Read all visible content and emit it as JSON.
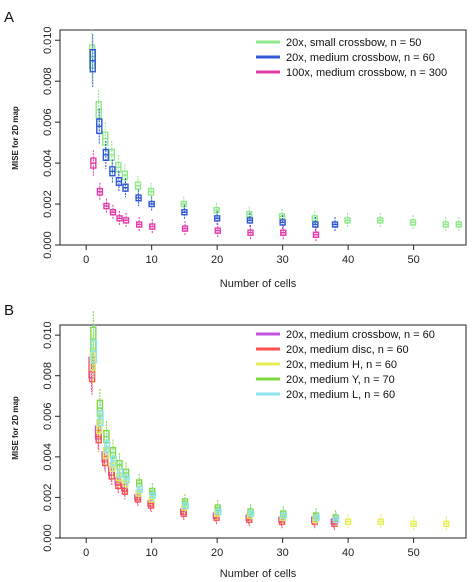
{
  "chart_data": [
    {
      "panel": "A",
      "type": "scatter",
      "title": "",
      "xlabel": "Number of cells",
      "ylabel": "MISE for 2D map",
      "xlim": [
        -4,
        58
      ],
      "ylim": [
        0,
        0.0105
      ],
      "xticks": [
        "0",
        "10",
        "20",
        "30",
        "40",
        "50"
      ],
      "yticks": [
        "0.000",
        "0.002",
        "0.004",
        "0.006",
        "0.008",
        "0.010"
      ],
      "legend_position": "top-right",
      "series": [
        {
          "name": "20x, small crossbow, n = 50",
          "color": "#8fe88a",
          "x": [
            1,
            2,
            3,
            4,
            5,
            6,
            8,
            10,
            15,
            20,
            25,
            30,
            35,
            40,
            45,
            50,
            55,
            57
          ],
          "y": [
            0.0092,
            0.0066,
            0.0052,
            0.0044,
            0.0038,
            0.0034,
            0.0029,
            0.0026,
            0.002,
            0.0017,
            0.0015,
            0.0014,
            0.0013,
            0.0012,
            0.0012,
            0.0011,
            0.001,
            0.001
          ]
        },
        {
          "name": "20x, medium crossbow, n = 60",
          "color": "#2f57d6",
          "x": [
            1,
            2,
            3,
            4,
            5,
            6,
            8,
            10,
            15,
            20,
            25,
            30,
            35,
            38
          ],
          "y": [
            0.009,
            0.0058,
            0.0044,
            0.0036,
            0.0031,
            0.0028,
            0.0023,
            0.002,
            0.0016,
            0.0013,
            0.0012,
            0.0011,
            0.001,
            0.001
          ]
        },
        {
          "name": "100x, medium crossbow, n = 300",
          "color": "#e33caa",
          "x": [
            1,
            2,
            3,
            4,
            5,
            6,
            8,
            10,
            15,
            20,
            25,
            30,
            35
          ],
          "y": [
            0.004,
            0.0026,
            0.0019,
            0.0016,
            0.0013,
            0.0012,
            0.001,
            0.0009,
            0.0008,
            0.0007,
            0.0006,
            0.0006,
            0.0005
          ]
        }
      ]
    },
    {
      "panel": "B",
      "type": "scatter",
      "title": "",
      "xlabel": "Number of cells",
      "ylabel": "MISE for 2D map",
      "xlim": [
        -4,
        58
      ],
      "ylim": [
        0,
        0.0105
      ],
      "xticks": [
        "0",
        "10",
        "20",
        "30",
        "40",
        "50"
      ],
      "yticks": [
        "0.000",
        "0.002",
        "0.004",
        "0.006",
        "0.008",
        "0.010"
      ],
      "legend_position": "top-right",
      "series": [
        {
          "name": "20x, medium crossbow, n = 60",
          "color": "#c252e0",
          "x": [
            1,
            2,
            3,
            4,
            5,
            6,
            8,
            10,
            15,
            20,
            25,
            30,
            35,
            38
          ],
          "y": [
            0.0084,
            0.0052,
            0.004,
            0.0033,
            0.0028,
            0.0025,
            0.002,
            0.0017,
            0.0013,
            0.0011,
            0.001,
            0.0009,
            0.0009,
            0.0008
          ]
        },
        {
          "name": "20x, medium disc, n = 60",
          "color": "#ff4f4f",
          "x": [
            1,
            2,
            3,
            4,
            5,
            6,
            8,
            10,
            15,
            20,
            25,
            30,
            35,
            38
          ],
          "y": [
            0.0082,
            0.005,
            0.0038,
            0.0031,
            0.0026,
            0.0023,
            0.0019,
            0.0016,
            0.0012,
            0.001,
            0.0009,
            0.0008,
            0.0008,
            0.0007
          ]
        },
        {
          "name": "20x, medium H, n = 60",
          "color": "#e6ee55",
          "x": [
            1,
            2,
            3,
            4,
            5,
            6,
            8,
            10,
            15,
            20,
            25,
            30,
            35,
            40,
            45,
            50,
            55
          ],
          "y": [
            0.0088,
            0.0055,
            0.0042,
            0.0035,
            0.003,
            0.0027,
            0.0022,
            0.0019,
            0.0015,
            0.0012,
            0.0011,
            0.001,
            0.0009,
            0.0008,
            0.0008,
            0.0007,
            0.0007
          ]
        },
        {
          "name": "20x, medium Y, n = 70",
          "color": "#7ed83e",
          "x": [
            1,
            2,
            3,
            4,
            5,
            6,
            8,
            10,
            15,
            20,
            25,
            30,
            35,
            38
          ],
          "y": [
            0.0098,
            0.0064,
            0.005,
            0.0042,
            0.0036,
            0.0032,
            0.0027,
            0.0023,
            0.0018,
            0.0015,
            0.0013,
            0.0012,
            0.0011,
            0.001
          ]
        },
        {
          "name": "20x, medium L, n = 60",
          "color": "#8fe4f2",
          "x": [
            1,
            2,
            3,
            4,
            5,
            6,
            8,
            10,
            15,
            20,
            25,
            30,
            35,
            38
          ],
          "y": [
            0.0092,
            0.0059,
            0.0045,
            0.0038,
            0.0032,
            0.0029,
            0.0024,
            0.0021,
            0.0016,
            0.0013,
            0.0012,
            0.0011,
            0.001,
            0.0009
          ]
        }
      ]
    }
  ]
}
